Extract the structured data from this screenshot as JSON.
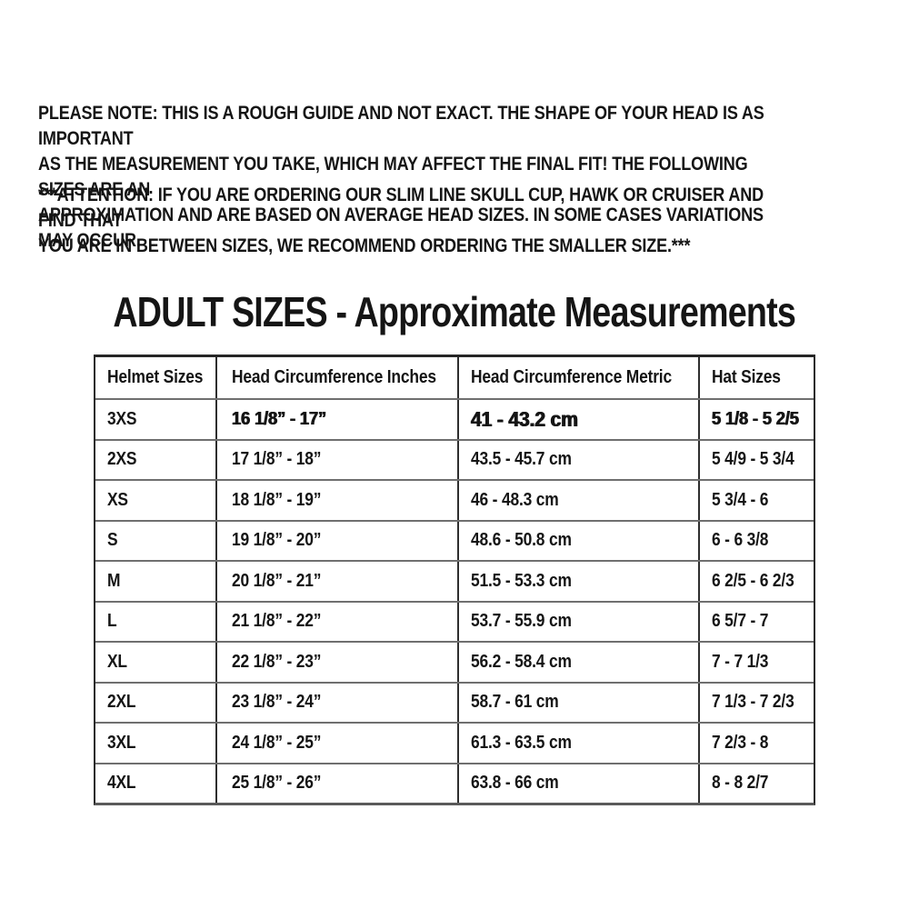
{
  "note_paragraph": "PLEASE NOTE: THIS IS A ROUGH GUIDE AND NOT EXACT. THE SHAPE OF YOUR HEAD IS AS IMPORTANT\nAS THE MEASUREMENT YOU TAKE, WHICH MAY AFFECT THE FINAL FIT! THE FOLLOWING SIZES ARE AN\nAPPROXIMATION AND ARE BASED ON AVERAGE HEAD SIZES. IN SOME CASES VARIATIONS MAY OCCUR.",
  "attention_paragraph": "***ATTENTION: IF YOU ARE ORDERING OUR SLIM LINE SKULL CUP, HAWK OR CRUISER AND FIND THAT\nYOU ARE IN BETWEEN SIZES, WE RECOMMEND ORDERING THE SMALLER SIZE.***",
  "title": "ADULT SIZES - Approximate Measurements",
  "table": {
    "headers": [
      "Helmet Sizes",
      "Head Circumference Inches",
      "Head Circumference Metric",
      "Hat Sizes"
    ],
    "rows": [
      [
        "3XS",
        "16 1/8” - 17”",
        "41 - 43.2 cm",
        "5 1/8 - 5 2/5"
      ],
      [
        "2XS",
        "17 1/8” - 18”",
        "43.5 - 45.7 cm",
        "5 4/9 - 5 3/4"
      ],
      [
        "XS",
        "18 1/8” - 19”",
        "46 - 48.3 cm",
        "5 3/4 - 6"
      ],
      [
        "S",
        "19 1/8” - 20”",
        "48.6 - 50.8 cm",
        "6 - 6 3/8"
      ],
      [
        "M",
        "20 1/8” - 21”",
        "51.5 - 53.3 cm",
        "6 2/5 - 6 2/3"
      ],
      [
        "L",
        "21 1/8” - 22”",
        "53.7 - 55.9 cm",
        "6 5/7 - 7"
      ],
      [
        "XL",
        "22 1/8” - 23”",
        "56.2 - 58.4 cm",
        "7 - 7 1/3"
      ],
      [
        "2XL",
        "23 1/8” - 24”",
        "58.7 - 61 cm",
        "7 1/3 - 7 2/3"
      ],
      [
        "3XL",
        "24 1/8” - 25”",
        "61.3 - 63.5 cm",
        "7 2/3 - 8"
      ],
      [
        "4XL",
        "25 1/8” - 26”",
        "63.8 - 66 cm",
        "8 - 8 2/7"
      ]
    ]
  },
  "colors": {
    "text": "#151515",
    "outer_border": "#262626",
    "vertical_border": "#2e2e2e",
    "horizontal_border": "#6f6f6f",
    "background": "#ffffff"
  }
}
